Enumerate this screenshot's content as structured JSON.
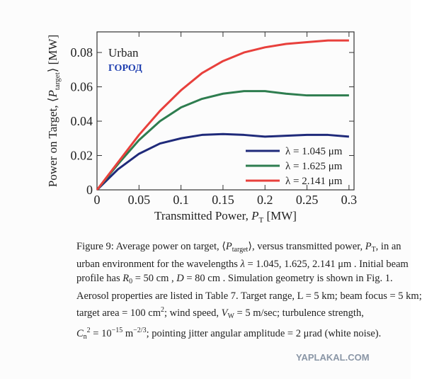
{
  "chart_data": {
    "type": "line",
    "x": [
      0,
      0.025,
      0.05,
      0.075,
      0.1,
      0.125,
      0.15,
      0.175,
      0.2,
      0.225,
      0.25,
      0.275,
      0.3
    ],
    "series": [
      {
        "name": "λ = 1.045 μm",
        "color": "#1f2a7a",
        "values": [
          0,
          0.012,
          0.021,
          0.027,
          0.03,
          0.032,
          0.0325,
          0.032,
          0.031,
          0.0315,
          0.032,
          0.032,
          0.031
        ]
      },
      {
        "name": "λ = 1.625 μm",
        "color": "#2e7d4f",
        "values": [
          0,
          0.015,
          0.029,
          0.04,
          0.048,
          0.053,
          0.056,
          0.0575,
          0.0575,
          0.056,
          0.055,
          0.055,
          0.055
        ]
      },
      {
        "name": "λ = 2.141 μm",
        "color": "#e8403c",
        "values": [
          0,
          0.016,
          0.032,
          0.046,
          0.058,
          0.068,
          0.075,
          0.08,
          0.083,
          0.085,
          0.086,
          0.087,
          0.087
        ]
      }
    ],
    "xlim": [
      0,
      0.306
    ],
    "ylim": [
      0,
      0.092
    ],
    "xticks": [
      0,
      0.05,
      0.1,
      0.15,
      0.2,
      0.25,
      0.3
    ],
    "yticks": [
      0,
      0.02,
      0.04,
      0.06,
      0.08
    ],
    "x_label": {
      "text": "Transmitted Power, ",
      "symbol": "P",
      "sub": "T",
      "unit": " [MW]"
    },
    "y_label": {
      "text": "Power on Target, ⟨",
      "symbol": "P",
      "sub": "target",
      "unit": "⟩ [MW]"
    },
    "annotations": [
      {
        "text": "Urban",
        "color": "#222222"
      },
      {
        "text": "ГОРОД",
        "color": "#1f3fb0"
      }
    ],
    "legend": "lower right"
  },
  "caption": {
    "lines": [
      [
        {
          "text": "Figure 9: Average power on target, ⟨"
        },
        {
          "text": "P",
          "style": "i"
        },
        {
          "text": "target",
          "style": "sub"
        },
        {
          "text": "⟩, versus transmitted power, "
        },
        {
          "text": "P",
          "style": "i"
        },
        {
          "text": "T",
          "style": "sub"
        },
        {
          "text": ", in an"
        }
      ],
      [
        {
          "text": "urban environment for the wavelengths "
        },
        {
          "text": "λ",
          "style": "i"
        },
        {
          "text": " = 1.045, 1.625, 2.141 μm . Initial beam"
        }
      ],
      [
        {
          "text": "profile has "
        },
        {
          "text": "R",
          "style": "i"
        },
        {
          "text": "0",
          "style": "sub"
        },
        {
          "text": " = 50 cm , "
        },
        {
          "text": "D",
          "style": "i"
        },
        {
          "text": " = 80 cm . Simulation geometry is shown in Fig. 1."
        }
      ],
      [
        {
          "text": "Aerosol properties are listed in Table 7. Target range, L = 5 km; beam focus = 5 km;"
        }
      ],
      [
        {
          "text": "target area = 100 cm"
        },
        {
          "text": "2",
          "style": "sup"
        },
        {
          "text": "; wind speed, "
        },
        {
          "text": "V",
          "style": "i"
        },
        {
          "text": "W",
          "style": "sub"
        },
        {
          "text": " = 5 m/sec; turbulence strength,"
        }
      ],
      [
        {
          "text": "C",
          "style": "i"
        },
        {
          "text": "n",
          "style": "sub"
        },
        {
          "text": "2",
          "style": "sup"
        },
        {
          "text": " = 10"
        },
        {
          "text": "−15",
          "style": "sup"
        },
        {
          "text": " m"
        },
        {
          "text": "−2/3",
          "style": "sup"
        },
        {
          "text": "; pointing jitter angular amplitude = 2 μrad (white noise)."
        }
      ]
    ]
  },
  "watermark": "YAPLAKAL.COM"
}
